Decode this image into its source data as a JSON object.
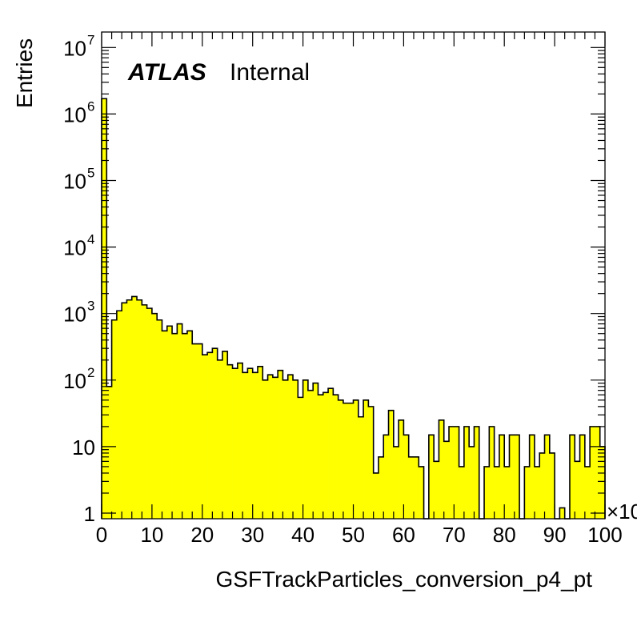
{
  "chart_data": {
    "type": "bar",
    "style": "step-histogram",
    "fill_color": "#ffff00",
    "line_color": "#000000",
    "xlabel": "GSFTrackParticles_conversion_p4_pt",
    "ylabel": "Entries",
    "xlim": [
      0,
      100
    ],
    "ylim": [
      0.8,
      12000000
    ],
    "y_scale": "log",
    "x_multiplier_label": "×10",
    "x_ticks": [
      "0",
      "10",
      "20",
      "30",
      "40",
      "50",
      "60",
      "70",
      "80",
      "90",
      "100"
    ],
    "y_ticks": [
      {
        "value": 1,
        "base": "1",
        "exp": ""
      },
      {
        "value": 10,
        "base": "10",
        "exp": ""
      },
      {
        "value": 100,
        "base": "10",
        "exp": "2"
      },
      {
        "value": 1000,
        "base": "10",
        "exp": "3"
      },
      {
        "value": 10000,
        "base": "10",
        "exp": "4"
      },
      {
        "value": 100000,
        "base": "10",
        "exp": "5"
      },
      {
        "value": 1000000,
        "base": "10",
        "exp": "6"
      },
      {
        "value": 10000000,
        "base": "10",
        "exp": "7"
      }
    ],
    "bin_width": 1,
    "bin_start": 0,
    "values": [
      1700000,
      80,
      800,
      1100,
      1450,
      1600,
      1800,
      1600,
      1350,
      1200,
      1000,
      800,
      550,
      650,
      500,
      700,
      500,
      550,
      350,
      350,
      240,
      260,
      300,
      200,
      270,
      170,
      150,
      180,
      130,
      150,
      130,
      160,
      100,
      120,
      110,
      140,
      100,
      120,
      100,
      55,
      100,
      70,
      90,
      60,
      65,
      75,
      60,
      50,
      45,
      45,
      50,
      28,
      50,
      40,
      4,
      7,
      15,
      35,
      10,
      25,
      15,
      7,
      7,
      5,
      0,
      15,
      6,
      25,
      12,
      20,
      20,
      5,
      20,
      10,
      20,
      0,
      5,
      20,
      5,
      15,
      5,
      15,
      15,
      0,
      5,
      15,
      5,
      8,
      15,
      8,
      0,
      1.2,
      0,
      15,
      6,
      15,
      5,
      20,
      20,
      10
    ]
  },
  "annotation": {
    "atlas": "ATLAS",
    "label": "Internal"
  }
}
